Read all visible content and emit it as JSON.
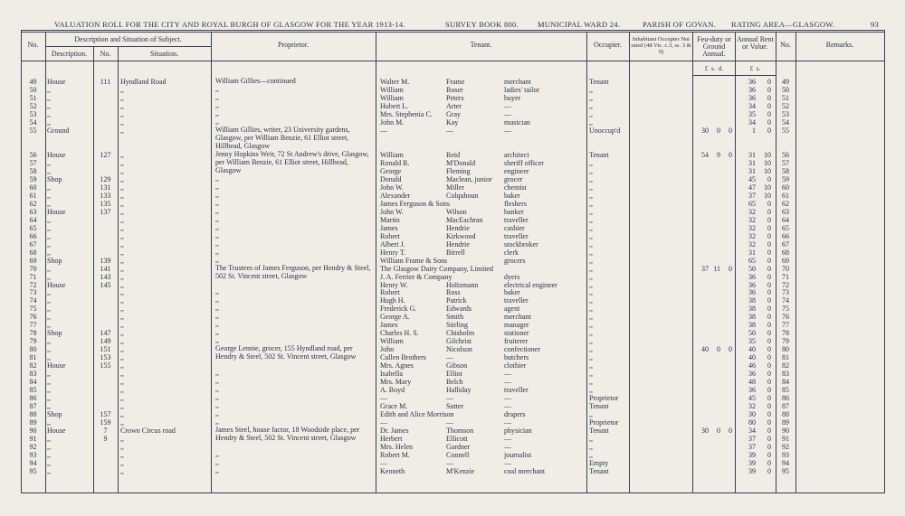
{
  "header": {
    "title": "VALUATION ROLL FOR THE CITY AND ROYAL BURGH OF GLASGOW FOR THE YEAR 1913-14.",
    "survey": "SURVEY BOOK 800.",
    "ward": "MUNICIPAL WARD 24.",
    "parish": "PARISH OF GOVAN.",
    "area": "RATING AREA—GLASGOW.",
    "page": "93"
  },
  "columns": {
    "no": "No.",
    "group": "Description and Situation of Subject.",
    "description": "Description.",
    "house_no": "No.",
    "situation": "Situation.",
    "proprietor": "Proprietor.",
    "tenant": "Tenant.",
    "occupier": "Occupier.",
    "inhabitant": "Inhabitant Occupier Not rated (48 Vic. c.3, ss. 3 & 9)",
    "feu": "Feu-duty or Ground Annual.",
    "rent": "Annual Rent or Value.",
    "no2": "No.",
    "remarks": "Remarks.",
    "feu_units": "£  s.  d.",
    "rent_units": "£  s."
  },
  "rows": [
    [
      49,
      "House",
      111,
      "Hyndland Road",
      "William Gillies—continued",
      "Walter M.",
      "Frame",
      "merchant",
      "Tenant",
      null,
      null,
      null,
      36,
      0,
      49
    ],
    [
      50,
      ",,",
      null,
      ",,",
      ",,",
      "William",
      "Roser",
      "ladies' tailor",
      ",,",
      null,
      null,
      null,
      36,
      0,
      50
    ],
    [
      51,
      ",,",
      null,
      ",,",
      ",,",
      "William",
      "Peters",
      "buyer",
      ",,",
      null,
      null,
      null,
      36,
      0,
      51
    ],
    [
      52,
      ",,",
      null,
      ",,",
      ",,",
      "Hubert L.",
      "Arter",
      "—",
      ",,",
      null,
      null,
      null,
      34,
      0,
      52
    ],
    [
      53,
      ",,",
      null,
      ",,",
      ",,",
      "Mrs. Stephenia C.",
      "Gray",
      "—",
      ",,",
      null,
      null,
      null,
      35,
      0,
      53
    ],
    [
      54,
      ",,",
      null,
      ",,",
      ",,",
      "John M.",
      "Kay",
      "musician",
      ",,",
      null,
      null,
      null,
      34,
      0,
      54
    ],
    [
      55,
      "Ground",
      null,
      ",,",
      "William Gillies, writer, 23 University gardens, Glasgow, per William Benzie, 61 Elliot street, Hillhead, Glasgow",
      "—",
      "—",
      "—",
      "Unoccup'd",
      30,
      0,
      0,
      1,
      0,
      55
    ],
    [
      56,
      "House",
      127,
      ",,",
      "Jenny Hopkins Weir, 72 St Andrew's drive, Glasgow, per William Benzie, 61 Elliot street, Hillhead, Glasgow",
      "William",
      "Reid",
      "architect",
      "Tenant",
      54,
      9,
      0,
      31,
      10,
      56
    ],
    [
      57,
      ",,",
      null,
      ",,",
      null,
      "Ronald R.",
      "M'Donald",
      "sheriff officer",
      ",,",
      null,
      null,
      null,
      31,
      10,
      57
    ],
    [
      58,
      ",,",
      null,
      ",,",
      null,
      "George",
      "Fleming",
      "engineer",
      ",,",
      null,
      null,
      null,
      31,
      10,
      58
    ],
    [
      59,
      "Shop",
      129,
      ",,",
      ",,",
      "Donald",
      "Maclean, junior",
      "grocer",
      ",,",
      null,
      null,
      null,
      45,
      0,
      59
    ],
    [
      60,
      ",,",
      131,
      ",,",
      ",,",
      "John W.",
      "Miller",
      "chemist",
      ",,",
      null,
      null,
      null,
      47,
      10,
      60
    ],
    [
      61,
      ",,",
      133,
      ",,",
      ",,",
      "Alexander",
      "Colquhoun",
      "baker",
      ",,",
      null,
      null,
      null,
      37,
      10,
      61
    ],
    [
      62,
      ",,",
      135,
      ",,",
      ",,",
      "James Ferguson & Sons",
      null,
      "fleshers",
      ",,",
      null,
      null,
      null,
      65,
      0,
      62
    ],
    [
      63,
      "House",
      137,
      ",,",
      ",,",
      "John W.",
      "Wilson",
      "banker",
      ",,",
      null,
      null,
      null,
      32,
      0,
      63
    ],
    [
      64,
      ",,",
      null,
      ",,",
      ",,",
      "Martin",
      "MacEachran",
      "traveller",
      ",,",
      null,
      null,
      null,
      32,
      0,
      64
    ],
    [
      65,
      ",,",
      null,
      ",,",
      ",,",
      "James",
      "Hendrie",
      "cashier",
      ",,",
      null,
      null,
      null,
      32,
      0,
      65
    ],
    [
      66,
      ",,",
      null,
      ",,",
      ",,",
      "Robert",
      "Kirkwood",
      "traveller",
      ",,",
      null,
      null,
      null,
      32,
      0,
      66
    ],
    [
      67,
      ",,",
      null,
      ",,",
      ",,",
      "Albert J.",
      "Hendrie",
      "stockbroker",
      ",,",
      null,
      null,
      null,
      32,
      0,
      67
    ],
    [
      68,
      ",,",
      null,
      ",,",
      ",,",
      "Henry T.",
      "Birrell",
      "clerk",
      ",,",
      null,
      null,
      null,
      31,
      0,
      68
    ],
    [
      69,
      "Shop",
      139,
      ",,",
      ",,",
      "William Frame & Sons",
      null,
      "grocers",
      ",,",
      null,
      null,
      null,
      65,
      0,
      69
    ],
    [
      70,
      ",,",
      141,
      ",,",
      "The Trustees of James Ferguson, per Hendry & Steel, 502 St. Vincent street, Glasgow",
      "The Glasgow Dairy Company, Limited",
      null,
      null,
      ",,",
      37,
      11,
      0,
      50,
      0,
      70
    ],
    [
      71,
      ",,",
      143,
      ",,",
      null,
      "J. A. Ferrier & Company",
      null,
      "dyers",
      ",,",
      null,
      null,
      null,
      36,
      0,
      71
    ],
    [
      72,
      "House",
      145,
      ",,",
      null,
      "Henry W.",
      "Holtzmann",
      "electrical engineer",
      ",,",
      null,
      null,
      null,
      36,
      0,
      72
    ],
    [
      73,
      ",,",
      null,
      ",,",
      ",,",
      "Robert",
      "Ross",
      "baker",
      ",,",
      null,
      null,
      null,
      36,
      0,
      73
    ],
    [
      74,
      ",,",
      null,
      ",,",
      ",,",
      "Hugh H.",
      "Patrick",
      "traveller",
      ",,",
      null,
      null,
      null,
      38,
      0,
      74
    ],
    [
      75,
      ",,",
      null,
      ",,",
      ",,",
      "Frederick G.",
      "Edwards",
      "agent",
      ",,",
      null,
      null,
      null,
      38,
      0,
      75
    ],
    [
      76,
      ",,",
      null,
      ",,",
      ",,",
      "George A.",
      "Smith",
      "merchant",
      ",,",
      null,
      null,
      null,
      38,
      0,
      76
    ],
    [
      77,
      ",,",
      null,
      ",,",
      ",,",
      "James",
      "Stirling",
      "manager",
      ",,",
      null,
      null,
      null,
      38,
      0,
      77
    ],
    [
      78,
      "Shop",
      147,
      ",,",
      ",,",
      "Charles H. S.",
      "Chisholm",
      "stationer",
      ",,",
      null,
      null,
      null,
      50,
      0,
      78
    ],
    [
      79,
      ",,",
      149,
      ",,",
      ",,",
      "William",
      "Gilchrist",
      "fruiterer",
      ",,",
      null,
      null,
      null,
      35,
      0,
      79
    ],
    [
      80,
      ",,",
      151,
      ",,",
      "George Lennie, grocer, 155 Hyndland road, per Hendry & Steel, 502 St. Vincent street, Glasgow",
      "John",
      "Nicolson",
      "confectioner",
      ",,",
      40,
      0,
      0,
      40,
      0,
      80
    ],
    [
      81,
      ",,",
      153,
      ",,",
      null,
      "Cullen Brothers",
      "—",
      "butchers",
      ",,",
      null,
      null,
      null,
      40,
      0,
      81
    ],
    [
      82,
      "House",
      155,
      ",,",
      null,
      "Mrs. Agnes",
      "Gibson",
      "clothier",
      ",,",
      null,
      null,
      null,
      46,
      0,
      82
    ],
    [
      83,
      ",,",
      null,
      ",,",
      ",,",
      "Isabella",
      "Elliot",
      "—",
      ",,",
      null,
      null,
      null,
      36,
      0,
      83
    ],
    [
      84,
      ",,",
      null,
      ",,",
      ",,",
      "Mrs. Mary",
      "Belch",
      "—",
      ",,",
      null,
      null,
      null,
      48,
      0,
      84
    ],
    [
      85,
      ",,",
      null,
      ",,",
      ",,",
      "A. Boyd",
      "Halliday",
      "traveller",
      ",,",
      null,
      null,
      null,
      36,
      0,
      85
    ],
    [
      86,
      ",,",
      null,
      ",,",
      ",,",
      "—",
      "—",
      "—",
      "Proprietor",
      null,
      null,
      null,
      45,
      0,
      86
    ],
    [
      87,
      ",,",
      null,
      ",,",
      ",,",
      "Grace M.",
      "Sutter",
      "—",
      "Tenant",
      null,
      null,
      null,
      32,
      0,
      87
    ],
    [
      88,
      "Shop",
      157,
      ",,",
      ",,",
      "Edith and Alice Morrison",
      null,
      "drapers",
      ",,",
      null,
      null,
      null,
      30,
      0,
      88
    ],
    [
      89,
      ",,",
      159,
      ",,",
      ",,",
      "—",
      "—",
      "—",
      "Proprietor",
      null,
      null,
      null,
      80,
      0,
      89
    ],
    [
      90,
      "House",
      7,
      "Crown Circus road",
      "James Steel, house factor, 18 Woodside place, per Hendry & Steel, 502 St. Vincent street, Glasgow",
      "Dr. James",
      "Thomson",
      "physician",
      "Tenant",
      30,
      0,
      0,
      34,
      0,
      90
    ],
    [
      91,
      ",,",
      9,
      ",,",
      null,
      "Herbert",
      "Ellicott",
      "—",
      ",,",
      null,
      null,
      null,
      37,
      0,
      91
    ],
    [
      92,
      ",,",
      null,
      ",,",
      null,
      "Mrs. Helen",
      "Gardner",
      "—",
      ",,",
      null,
      null,
      null,
      37,
      0,
      92
    ],
    [
      93,
      ",,",
      null,
      ",,",
      ",,",
      "Robert M.",
      "Connell",
      "journalist",
      ",,",
      null,
      null,
      null,
      39,
      0,
      93
    ],
    [
      94,
      ",,",
      null,
      ",,",
      ",,",
      "—",
      "—",
      "—",
      "Empty",
      null,
      null,
      null,
      39,
      0,
      94
    ],
    [
      95,
      ",,",
      null,
      ",,",
      ",,",
      "Kenneth",
      "M'Kenzie",
      "coal merchant",
      "Tenant",
      null,
      null,
      null,
      39,
      0,
      95
    ]
  ]
}
